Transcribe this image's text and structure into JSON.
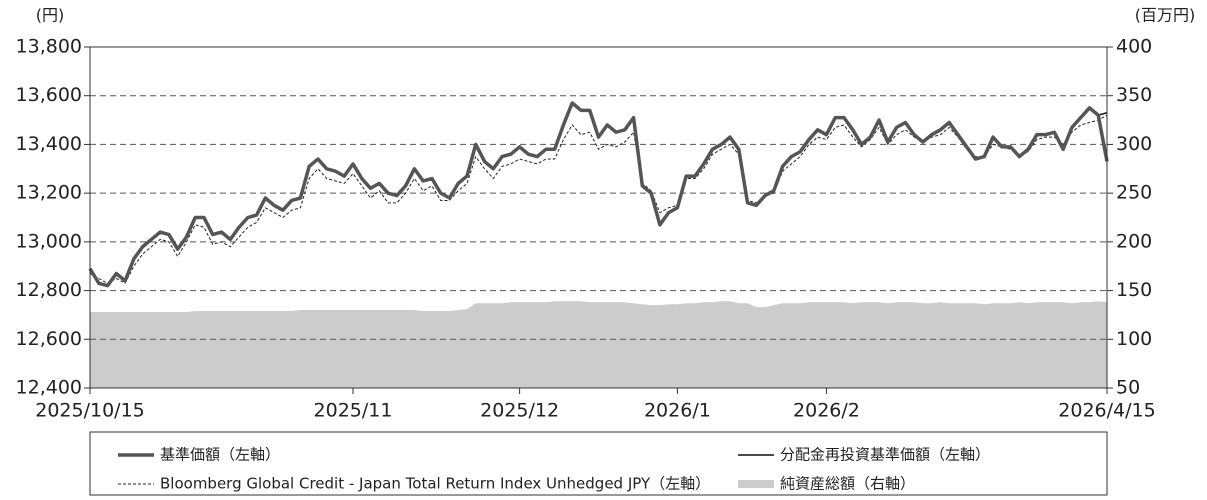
{
  "chart_data": {
    "type": "line",
    "y_unit": "(円)",
    "y2_unit": "(百万円)",
    "categories": [
      "2025/10/15",
      null,
      null,
      null,
      null,
      null,
      null,
      null,
      null,
      null,
      null,
      null,
      null,
      null,
      null,
      null,
      null,
      null,
      null,
      null,
      null,
      null,
      null,
      null,
      null,
      null,
      null,
      null,
      null,
      null,
      "2025/11",
      null,
      null,
      null,
      null,
      null,
      null,
      null,
      null,
      null,
      null,
      null,
      null,
      null,
      null,
      null,
      null,
      null,
      null,
      "2025/12",
      null,
      null,
      null,
      null,
      null,
      null,
      null,
      null,
      null,
      null,
      null,
      null,
      null,
      null,
      null,
      null,
      null,
      "2026/1",
      null,
      null,
      null,
      null,
      null,
      null,
      null,
      null,
      null,
      null,
      null,
      null,
      null,
      null,
      null,
      null,
      "2026/2",
      null,
      null,
      null,
      null,
      null,
      null,
      null,
      null,
      null,
      null,
      null,
      null,
      null,
      null,
      null,
      null,
      null,
      null,
      null,
      null,
      null,
      null,
      null,
      null,
      null,
      null,
      null,
      null,
      null,
      null,
      null,
      "2026/4/15"
    ],
    "series": [
      {
        "name": "基準価額（左軸）",
        "color": "#555555",
        "style": "thick",
        "axis": "y",
        "values": [
          12890,
          12830,
          12820,
          12870,
          12840,
          12930,
          12980,
          13010,
          13040,
          13030,
          12970,
          13020,
          13100,
          13100,
          13030,
          13040,
          13010,
          13060,
          13100,
          13110,
          13180,
          13150,
          13130,
          13170,
          13180,
          13310,
          13340,
          13300,
          13290,
          13270,
          13320,
          13260,
          13220,
          13240,
          13200,
          13190,
          13230,
          13300,
          13250,
          13260,
          13200,
          13180,
          13240,
          13270,
          13400,
          13330,
          13300,
          13350,
          13360,
          13390,
          13360,
          13350,
          13380,
          13380,
          13480,
          13570,
          13540,
          13540,
          13430,
          13480,
          13450,
          13460,
          13510,
          13230,
          13200,
          13070,
          13120,
          13140,
          13270,
          13270,
          13320,
          13380,
          13400,
          13430,
          13380,
          13160,
          13150,
          13190,
          13210,
          13310,
          13350,
          13370,
          13420,
          13460,
          13440,
          13510,
          13510,
          13460,
          13400,
          13430,
          13500,
          13410,
          13470,
          13490,
          13440,
          13410,
          13440,
          13460,
          13490,
          13440,
          13390,
          13340,
          13350,
          13430,
          13390,
          13390,
          13350,
          13380,
          13440,
          13440,
          13450,
          13380,
          13470,
          13510,
          13550,
          13520,
          13330
        ]
      },
      {
        "name": "分配金再投資基準価額（左軸）",
        "color": "#111111",
        "style": "thin",
        "axis": "y",
        "values": [
          12890,
          12830,
          12820,
          12870,
          12840,
          12930,
          12980,
          13010,
          13040,
          13030,
          12970,
          13020,
          13100,
          13100,
          13030,
          13040,
          13010,
          13060,
          13100,
          13110,
          13180,
          13150,
          13130,
          13170,
          13180,
          13310,
          13340,
          13300,
          13290,
          13270,
          13320,
          13260,
          13220,
          13240,
          13200,
          13190,
          13230,
          13300,
          13250,
          13260,
          13200,
          13180,
          13240,
          13270,
          13400,
          13330,
          13300,
          13350,
          13360,
          13390,
          13360,
          13350,
          13380,
          13380,
          13480,
          13570,
          13540,
          13540,
          13430,
          13480,
          13450,
          13460,
          13510,
          13230,
          13200,
          13070,
          13120,
          13140,
          13270,
          13270,
          13320,
          13380,
          13400,
          13430,
          13380,
          13160,
          13150,
          13190,
          13210,
          13310,
          13350,
          13370,
          13420,
          13460,
          13440,
          13510,
          13510,
          13460,
          13400,
          13430,
          13500,
          13410,
          13470,
          13490,
          13440,
          13410,
          13440,
          13460,
          13490,
          13440,
          13390,
          13340,
          13350,
          13430,
          13390,
          13390,
          13350,
          13380,
          13440,
          13440,
          13450,
          13380,
          13470,
          13510,
          13550,
          13520,
          13530
        ]
      },
      {
        "name": "Bloomberg Global Credit - Japan Total Return Index Unhedged JPY（左軸）",
        "color": "#222222",
        "style": "dashed",
        "axis": "y",
        "values": [
          12870,
          12850,
          12830,
          12850,
          12830,
          12900,
          12950,
          12980,
          13010,
          13000,
          12940,
          13000,
          13070,
          13060,
          12990,
          13000,
          12980,
          13020,
          13060,
          13080,
          13140,
          13120,
          13100,
          13130,
          13140,
          13260,
          13300,
          13260,
          13250,
          13240,
          13280,
          13230,
          13180,
          13210,
          13160,
          13160,
          13200,
          13260,
          13210,
          13230,
          13170,
          13170,
          13210,
          13240,
          13350,
          13300,
          13260,
          13310,
          13320,
          13340,
          13330,
          13320,
          13340,
          13340,
          13420,
          13480,
          13440,
          13450,
          13380,
          13400,
          13390,
          13410,
          13450,
          13240,
          13210,
          13120,
          13140,
          13150,
          13260,
          13260,
          13300,
          13360,
          13380,
          13400,
          13360,
          13170,
          13160,
          13190,
          13200,
          13290,
          13320,
          13350,
          13400,
          13430,
          13420,
          13470,
          13480,
          13430,
          13390,
          13420,
          13470,
          13400,
          13440,
          13460,
          13430,
          13410,
          13430,
          13440,
          13470,
          13430,
          13380,
          13350,
          13350,
          13400,
          13390,
          13380,
          13360,
          13370,
          13420,
          13430,
          13430,
          13400,
          13450,
          13480,
          13490,
          13500,
          13520
        ]
      },
      {
        "name": "純資産総額（右軸）",
        "color": "#cccccc",
        "style": "area",
        "axis": "y2",
        "values": [
          128,
          128,
          128,
          128,
          128,
          128,
          128,
          128,
          128,
          128,
          128,
          128,
          129,
          129,
          129,
          129,
          129,
          129,
          129,
          129,
          129,
          129,
          129,
          129,
          130,
          130,
          130,
          130,
          130,
          130,
          130,
          130,
          130,
          130,
          130,
          130,
          130,
          130,
          129,
          129,
          129,
          129,
          130,
          131,
          137,
          137,
          137,
          137,
          138,
          138,
          138,
          138,
          138,
          139,
          139,
          139,
          139,
          138,
          138,
          138,
          138,
          138,
          137,
          136,
          135,
          135,
          136,
          136,
          137,
          137,
          138,
          138,
          139,
          139,
          137,
          137,
          133,
          133,
          135,
          137,
          137,
          137,
          138,
          138,
          138,
          138,
          138,
          137,
          138,
          138,
          138,
          137,
          138,
          138,
          138,
          137,
          137,
          138,
          137,
          137,
          137,
          137,
          136,
          137,
          137,
          137,
          138,
          137,
          138,
          138,
          138,
          138,
          137,
          138,
          138,
          139,
          138
        ]
      }
    ],
    "ylim": [
      12400,
      13800
    ],
    "yticks": [
      {
        "value": 12400,
        "label": "12,400"
      },
      {
        "value": 12600,
        "label": "12,600"
      },
      {
        "value": 12800,
        "label": "12,800"
      },
      {
        "value": 13000,
        "label": "13,000"
      },
      {
        "value": 13200,
        "label": "13,200"
      },
      {
        "value": 13400,
        "label": "13,400"
      },
      {
        "value": 13600,
        "label": "13,600"
      },
      {
        "value": 13800,
        "label": "13,800"
      }
    ],
    "y2lim": [
      50,
      400
    ],
    "y2ticks": [
      50,
      100,
      150,
      200,
      250,
      300,
      350,
      400
    ],
    "grid": true
  }
}
